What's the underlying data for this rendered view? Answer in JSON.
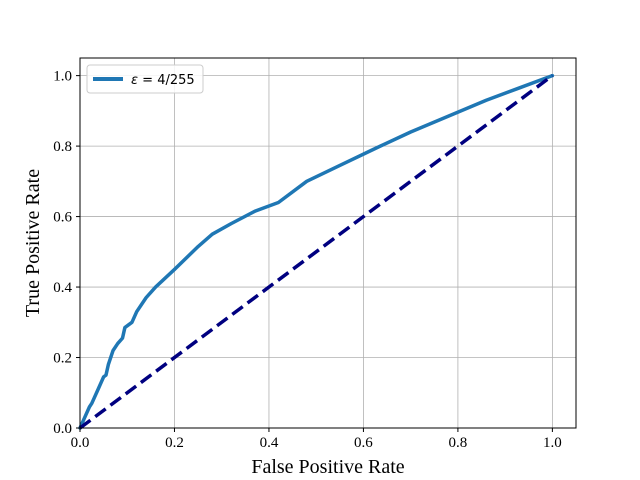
{
  "chart_data": {
    "type": "line",
    "title": "",
    "xlabel": "False Positive Rate",
    "ylabel": "True Positive Rate",
    "xlim": [
      0,
      1.05
    ],
    "ylim": [
      0,
      1.05
    ],
    "xticks": [
      0.0,
      0.2,
      0.4,
      0.6,
      0.8,
      1.0
    ],
    "yticks": [
      0.0,
      0.2,
      0.4,
      0.6,
      0.8,
      1.0
    ],
    "xtick_labels": [
      "0.0",
      "0.2",
      "0.4",
      "0.6",
      "0.8",
      "1.0"
    ],
    "ytick_labels": [
      "0.0",
      "0.2",
      "0.4",
      "0.6",
      "0.8",
      "1.0"
    ],
    "grid": true,
    "legend": {
      "position": "top-left",
      "symbol": "ε",
      "label_rest": " = 4/255"
    },
    "series": [
      {
        "name": "ε = 4/255",
        "color": "#1f77b4",
        "style": "solid",
        "x": [
          0.0,
          0.01,
          0.02,
          0.025,
          0.03,
          0.04,
          0.045,
          0.05,
          0.055,
          0.06,
          0.07,
          0.08,
          0.09,
          0.095,
          0.1,
          0.11,
          0.12,
          0.14,
          0.16,
          0.2,
          0.25,
          0.28,
          0.32,
          0.37,
          0.42,
          0.48,
          0.55,
          0.62,
          0.7,
          0.78,
          0.86,
          0.93,
          1.0
        ],
        "y": [
          0.0,
          0.03,
          0.06,
          0.07,
          0.085,
          0.115,
          0.13,
          0.145,
          0.15,
          0.18,
          0.22,
          0.24,
          0.255,
          0.285,
          0.29,
          0.3,
          0.33,
          0.37,
          0.4,
          0.45,
          0.515,
          0.55,
          0.58,
          0.615,
          0.64,
          0.7,
          0.745,
          0.79,
          0.84,
          0.885,
          0.93,
          0.965,
          1.0
        ]
      },
      {
        "name": "",
        "color": "#000080",
        "style": "dashed",
        "x": [
          0.0,
          1.0
        ],
        "y": [
          0.0,
          1.0
        ]
      }
    ]
  }
}
